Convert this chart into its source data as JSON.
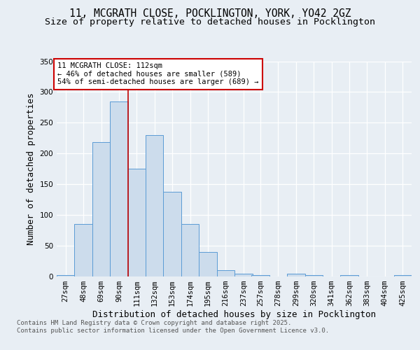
{
  "title_line1": "11, MCGRATH CLOSE, POCKLINGTON, YORK, YO42 2GZ",
  "title_line2": "Size of property relative to detached houses in Pocklington",
  "xlabel": "Distribution of detached houses by size in Pocklington",
  "ylabel": "Number of detached properties",
  "bar_edges": [
    27,
    48,
    69,
    90,
    111,
    132,
    153,
    174,
    195,
    216,
    237,
    257,
    278,
    299,
    320,
    341,
    362,
    383,
    404,
    425,
    446
  ],
  "bar_heights": [
    2,
    85,
    218,
    285,
    175,
    230,
    138,
    85,
    40,
    10,
    5,
    2,
    0,
    5,
    2,
    0,
    2,
    0,
    0,
    2
  ],
  "bar_color": "#ccdcec",
  "bar_edgecolor": "#5b9bd5",
  "vline_x": 111,
  "vline_color": "#c00000",
  "annotation_text": "11 MCGRATH CLOSE: 112sqm\n← 46% of detached houses are smaller (589)\n54% of semi-detached houses are larger (689) →",
  "annotation_box_color": "white",
  "annotation_box_edgecolor": "#cc0000",
  "ylim": [
    0,
    350
  ],
  "yticks": [
    0,
    50,
    100,
    150,
    200,
    250,
    300,
    350
  ],
  "background_color": "#e8eef4",
  "grid_color": "#ffffff",
  "footer_text": "Contains HM Land Registry data © Crown copyright and database right 2025.\nContains public sector information licensed under the Open Government Licence v3.0.",
  "title_fontsize": 10.5,
  "subtitle_fontsize": 9.5,
  "axis_label_fontsize": 9,
  "tick_fontsize": 7.5,
  "footer_fontsize": 6.5
}
